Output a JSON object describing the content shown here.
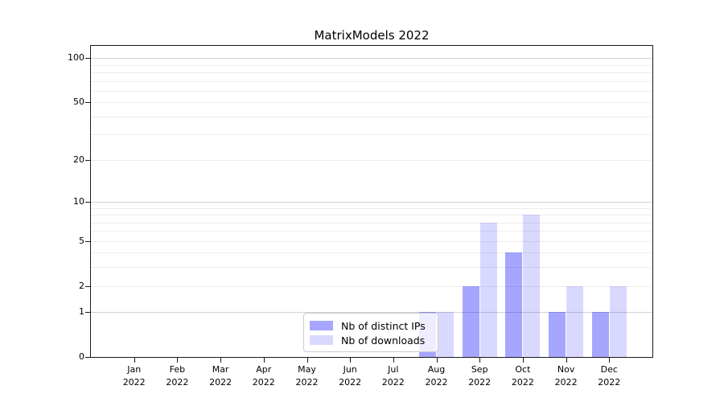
{
  "chart_data": {
    "type": "bar",
    "title": "MatrixModels 2022",
    "categories": [
      "Jan 2022",
      "Feb 2022",
      "Mar 2022",
      "Apr 2022",
      "May 2022",
      "Jun 2022",
      "Jul 2022",
      "Aug 2022",
      "Sep 2022",
      "Oct 2022",
      "Nov 2022",
      "Dec 2022"
    ],
    "series": [
      {
        "name": "Nb of distinct IPs",
        "color": "rgba(0,0,255,0.35)",
        "values": [
          0,
          0,
          0,
          0,
          0,
          0,
          0,
          1,
          2,
          4,
          1,
          1
        ]
      },
      {
        "name": "Nb of downloads",
        "color": "rgba(0,0,255,0.15)",
        "values": [
          0,
          0,
          0,
          0,
          0,
          0,
          0,
          1,
          7,
          8,
          2,
          2
        ]
      }
    ],
    "xlabel": "",
    "ylabel": "",
    "yscale": "log1p",
    "ylim": [
      0,
      121
    ],
    "ytick_values": [
      0,
      1,
      2,
      5,
      10,
      20,
      50,
      100
    ],
    "grid_major_values": [
      1,
      10,
      100
    ],
    "grid_minor_values": [
      2,
      3,
      4,
      5,
      6,
      7,
      8,
      9,
      20,
      30,
      40,
      50,
      60,
      70,
      80,
      90
    ],
    "legend_position": "lower center",
    "colors": {
      "grid_major": "#d2d2d2",
      "grid_minor": "#ececec",
      "axis": "#1a1a1a",
      "background": "#ffffff"
    }
  }
}
